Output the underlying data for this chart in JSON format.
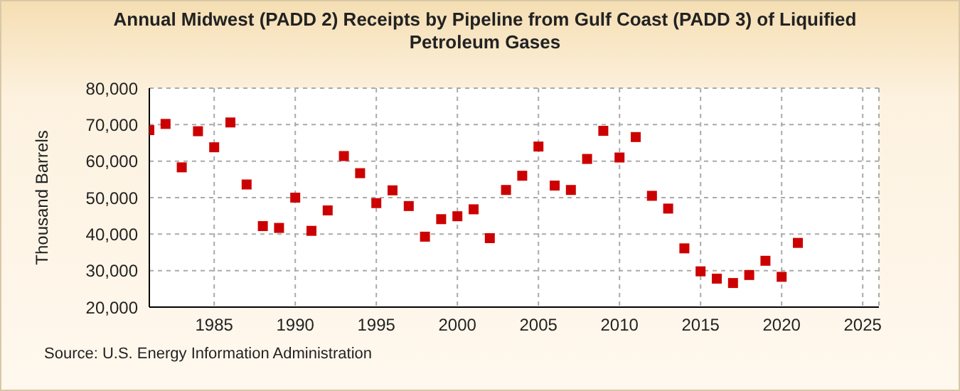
{
  "chart_data": {
    "type": "scatter",
    "title": "Annual Midwest (PADD 2) Receipts by Pipeline from Gulf Coast (PADD 3) of Liquified Petroleum Gases",
    "ylabel": "Thousand Barrels",
    "annotations": [
      "Source: U.S. Energy Information Administration"
    ],
    "x": [
      1981,
      1982,
      1983,
      1984,
      1985,
      1986,
      1987,
      1988,
      1989,
      1990,
      1991,
      1992,
      1993,
      1994,
      1995,
      1996,
      1997,
      1998,
      1999,
      2000,
      2001,
      2002,
      2003,
      2004,
      2005,
      2006,
      2007,
      2008,
      2009,
      2010,
      2011,
      2012,
      2013,
      2014,
      2015,
      2016,
      2017,
      2018,
      2019,
      2020,
      2021
    ],
    "series": [
      {
        "color": "#cc0000",
        "values": [
          68500,
          70200,
          58300,
          68200,
          63800,
          70600,
          53600,
          42200,
          41700,
          50000,
          40900,
          46500,
          61400,
          56700,
          48500,
          52000,
          47700,
          39300,
          44100,
          44900,
          46800,
          38900,
          52100,
          56000,
          64000,
          53300,
          52100,
          60600,
          68300,
          61000,
          66600,
          50500,
          47000,
          36100,
          29800,
          27800,
          26600,
          28800,
          32700,
          28300,
          37600
        ]
      }
    ],
    "xlim": [
      1981,
      2026
    ],
    "xticks": [
      1985,
      1990,
      1995,
      2000,
      2005,
      2010,
      2015,
      2020,
      2025
    ],
    "ylim": [
      20000,
      80000
    ],
    "yticks": [
      {
        "value": 20000,
        "label": "20,000"
      },
      {
        "value": 30000,
        "label": "30,000"
      },
      {
        "value": 40000,
        "label": "40,000"
      },
      {
        "value": 50000,
        "label": "50,000"
      },
      {
        "value": 60000,
        "label": "60,000"
      },
      {
        "value": 70000,
        "label": "70,000"
      },
      {
        "value": 80000,
        "label": "80,000"
      }
    ],
    "grid": true,
    "marker": "square"
  }
}
